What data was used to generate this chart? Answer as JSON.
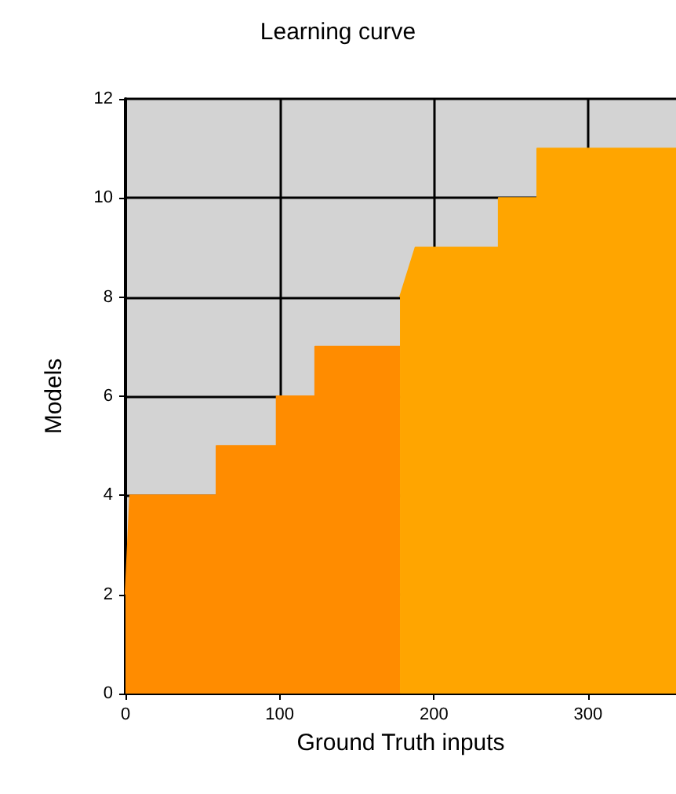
{
  "chart_data": {
    "type": "area",
    "title": "Learning curve",
    "xlabel": "Ground Truth inputs",
    "ylabel": "Models",
    "series": [
      {
        "color": "#ff8c00",
        "x": [
          0,
          3,
          59,
          59,
          98,
          98,
          123,
          123,
          178
        ],
        "values": [
          2,
          4,
          4,
          5,
          5,
          6,
          6,
          7,
          7
        ]
      },
      {
        "color": "#ffa500",
        "x": [
          178,
          188,
          242,
          242,
          267,
          267,
          357
        ],
        "values": [
          8,
          9,
          9,
          10,
          10,
          11,
          11
        ]
      }
    ],
    "xlim": [
      0,
      357
    ],
    "xticks": [
      0,
      100,
      200,
      300
    ],
    "ylim": [
      0,
      12
    ],
    "yticks": [
      0,
      2,
      4,
      6,
      8,
      10,
      12
    ],
    "grid": true
  }
}
